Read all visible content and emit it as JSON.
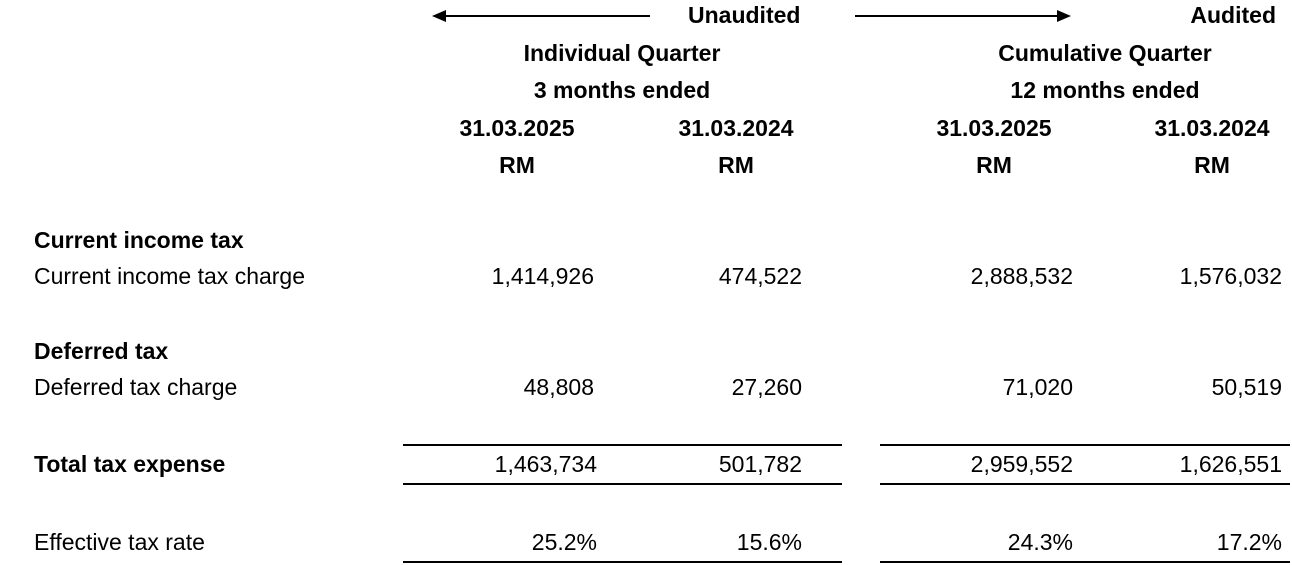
{
  "header": {
    "unaudited_label": "Unaudited",
    "audited_label": "Audited",
    "individual_title": "Individual Quarter",
    "individual_period": "3 months ended",
    "cumulative_title": "Cumulative Quarter",
    "cumulative_period": "12 months ended",
    "columns": [
      {
        "date": "31.03.2025",
        "unit": "RM"
      },
      {
        "date": "31.03.2024",
        "unit": "RM"
      },
      {
        "date": "31.03.2025",
        "unit": "RM"
      },
      {
        "date": "31.03.2024",
        "unit": "RM"
      }
    ]
  },
  "sections": {
    "current_income_tax": {
      "heading": "Current income tax",
      "row_label": "Current income tax charge",
      "values": [
        "1,414,926",
        "474,522",
        "2,888,532",
        "1,576,032"
      ]
    },
    "deferred_tax": {
      "heading": "Deferred tax",
      "row_label": "Deferred tax charge",
      "values": [
        "48,808",
        "27,260",
        "71,020",
        "50,519"
      ]
    },
    "total": {
      "row_label": "Total tax expense",
      "values": [
        "1,463,734",
        "501,782",
        "2,959,552",
        "1,626,551"
      ]
    },
    "effective_rate": {
      "row_label": "Effective tax rate",
      "values": [
        "25.2%",
        "15.6%",
        "24.3%",
        "17.2%"
      ]
    }
  }
}
